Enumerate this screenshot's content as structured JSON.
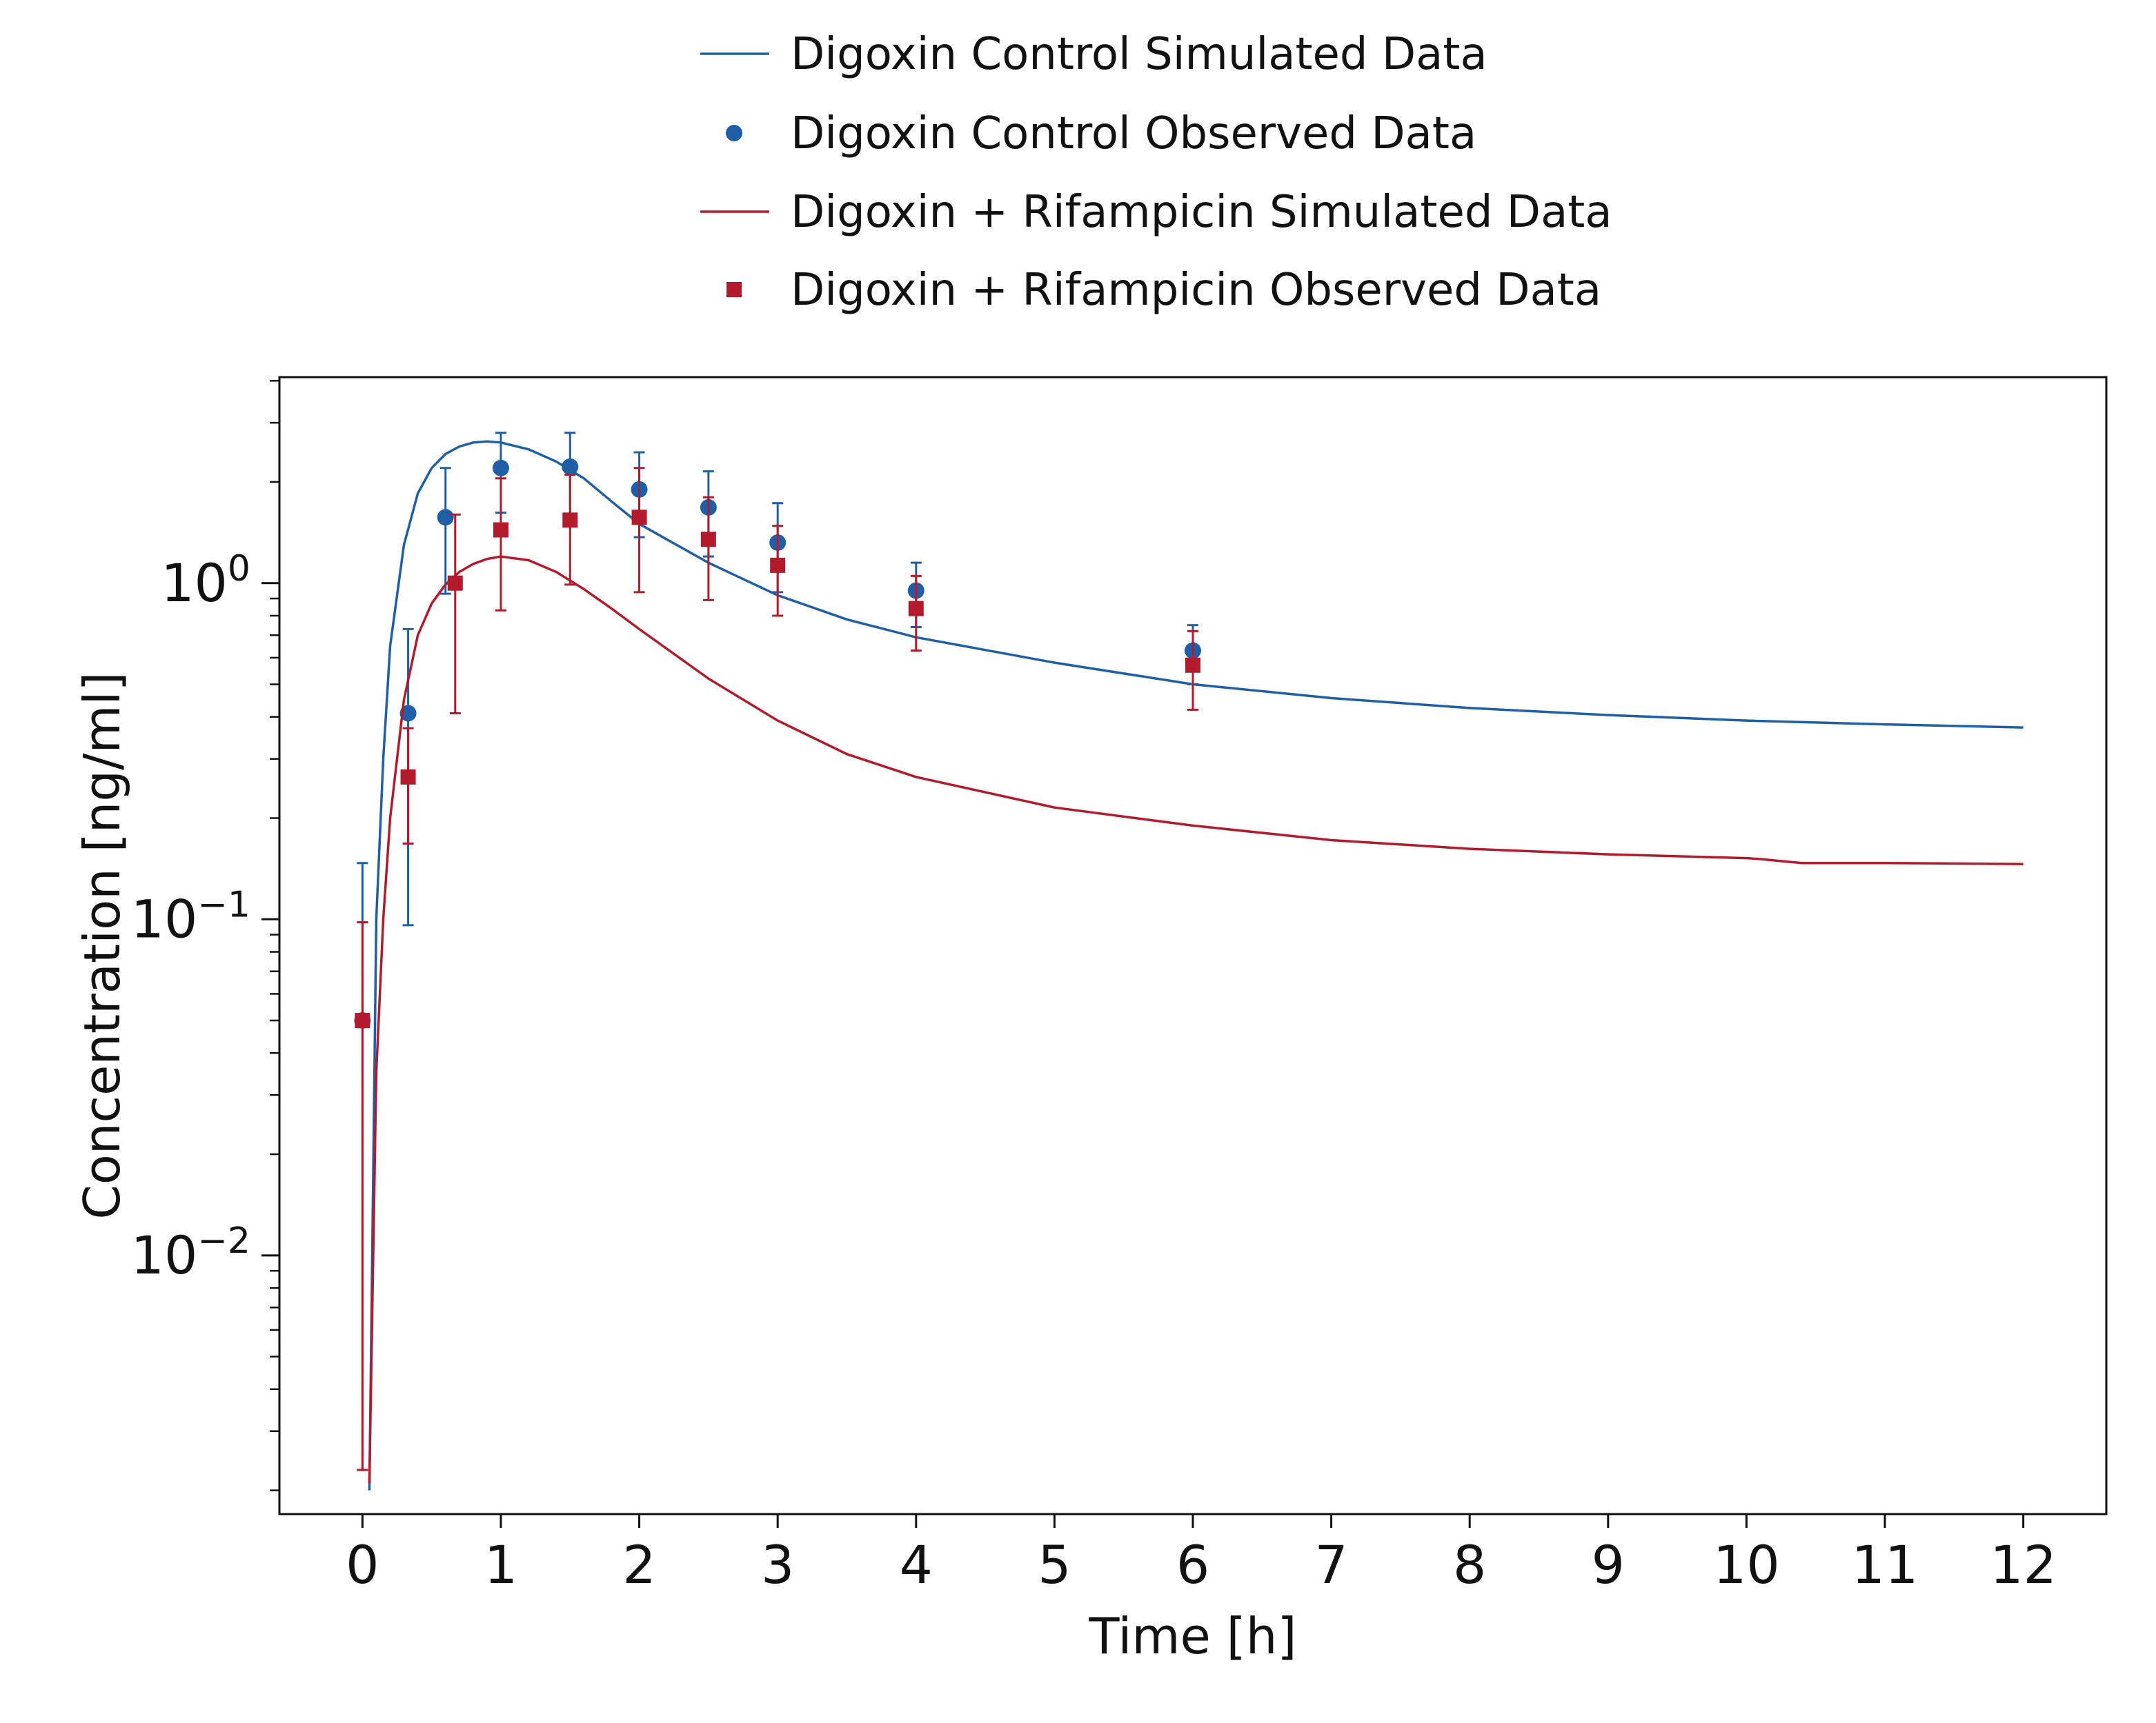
{
  "chart_data": {
    "type": "line",
    "xlabel": "Time [h]",
    "ylabel": "Concentration [ng/ml]",
    "xlim": [
      -0.6,
      12.6
    ],
    "ylim": [
      0.0017,
      4.1
    ],
    "yscale": "log",
    "x_ticks": [
      0,
      1,
      2,
      3,
      4,
      5,
      6,
      7,
      8,
      9,
      10,
      11,
      12
    ],
    "x_tick_labels": [
      "0",
      "1",
      "2",
      "3",
      "4",
      "5",
      "6",
      "7",
      "8",
      "9",
      "10",
      "11",
      "12"
    ],
    "y_ticks": [
      0.01,
      0.1,
      1
    ],
    "y_tick_labels": [
      {
        "base": "10",
        "exp": "−2"
      },
      {
        "base": "10",
        "exp": "−1"
      },
      {
        "base": "10",
        "exp": "0"
      }
    ],
    "grid": false,
    "legend_position": "top-center",
    "series": [
      {
        "name": "Digoxin Control Simulated Data",
        "kind": "line",
        "color": "#1f5fa8",
        "x": [
          0.05,
          0.1,
          0.15,
          0.2,
          0.3,
          0.4,
          0.5,
          0.6,
          0.7,
          0.8,
          0.9,
          1.0,
          1.2,
          1.4,
          1.6,
          1.8,
          2.0,
          2.5,
          3.0,
          3.5,
          4.0,
          5.0,
          6.0,
          7.0,
          8.0,
          9.0,
          10.0,
          11.0,
          12.0
        ],
        "y": [
          0.002,
          0.1,
          0.3,
          0.65,
          1.3,
          1.85,
          2.2,
          2.42,
          2.55,
          2.62,
          2.64,
          2.62,
          2.5,
          2.3,
          2.05,
          1.75,
          1.5,
          1.15,
          0.92,
          0.78,
          0.69,
          0.58,
          0.5,
          0.455,
          0.425,
          0.405,
          0.39,
          0.38,
          0.372
        ]
      },
      {
        "name": "Digoxin Control Observed Data",
        "kind": "scatter",
        "marker": "circle",
        "color": "#1f5fa8",
        "x": [
          0,
          0.33,
          0.6,
          1.0,
          1.5,
          2.0,
          2.5,
          3.0,
          4.0,
          6.0
        ],
        "y": [
          0.05,
          0.41,
          1.57,
          2.2,
          2.22,
          1.9,
          1.68,
          1.32,
          0.95,
          0.63
        ],
        "y_err_low": [
          0.0023,
          0.096,
          0.93,
          1.62,
          1.6,
          1.37,
          1.2,
          0.94,
          0.74,
          0.5
        ],
        "y_err_high": [
          0.147,
          0.73,
          2.2,
          2.8,
          2.8,
          2.45,
          2.15,
          1.73,
          1.15,
          0.75
        ]
      },
      {
        "name": "Digoxin + Rifampicin Simulated Data",
        "kind": "line",
        "color": "#b31b2c",
        "x": [
          0.05,
          0.1,
          0.15,
          0.2,
          0.3,
          0.4,
          0.5,
          0.6,
          0.7,
          0.8,
          0.9,
          1.0,
          1.2,
          1.4,
          1.6,
          1.8,
          2.0,
          2.5,
          3.0,
          3.5,
          4.0,
          5.0,
          6.0,
          7.0,
          8.0,
          9.0,
          10.0,
          10.1,
          10.4,
          11.0,
          12.0
        ],
        "y": [
          0.0021,
          0.035,
          0.1,
          0.2,
          0.45,
          0.7,
          0.87,
          0.99,
          1.08,
          1.14,
          1.18,
          1.2,
          1.17,
          1.08,
          0.96,
          0.84,
          0.73,
          0.52,
          0.39,
          0.31,
          0.265,
          0.215,
          0.19,
          0.172,
          0.162,
          0.156,
          0.152,
          0.151,
          0.147,
          0.147,
          0.146
        ]
      },
      {
        "name": "Digoxin + Rifampicin Observed Data",
        "kind": "scatter",
        "marker": "square",
        "color": "#b31b2c",
        "x": [
          0,
          0.33,
          0.67,
          1.0,
          1.5,
          2.0,
          2.5,
          3.0,
          4.0,
          6.0
        ],
        "y": [
          0.05,
          0.265,
          1.0,
          1.44,
          1.54,
          1.57,
          1.35,
          1.13,
          0.84,
          0.57
        ],
        "y_err_low": [
          0.0023,
          0.168,
          0.41,
          0.83,
          0.99,
          0.94,
          0.89,
          0.8,
          0.63,
          0.42
        ],
        "y_err_high": [
          0.098,
          0.37,
          1.6,
          2.05,
          2.1,
          2.2,
          1.8,
          1.48,
          1.05,
          0.72
        ]
      }
    ]
  }
}
